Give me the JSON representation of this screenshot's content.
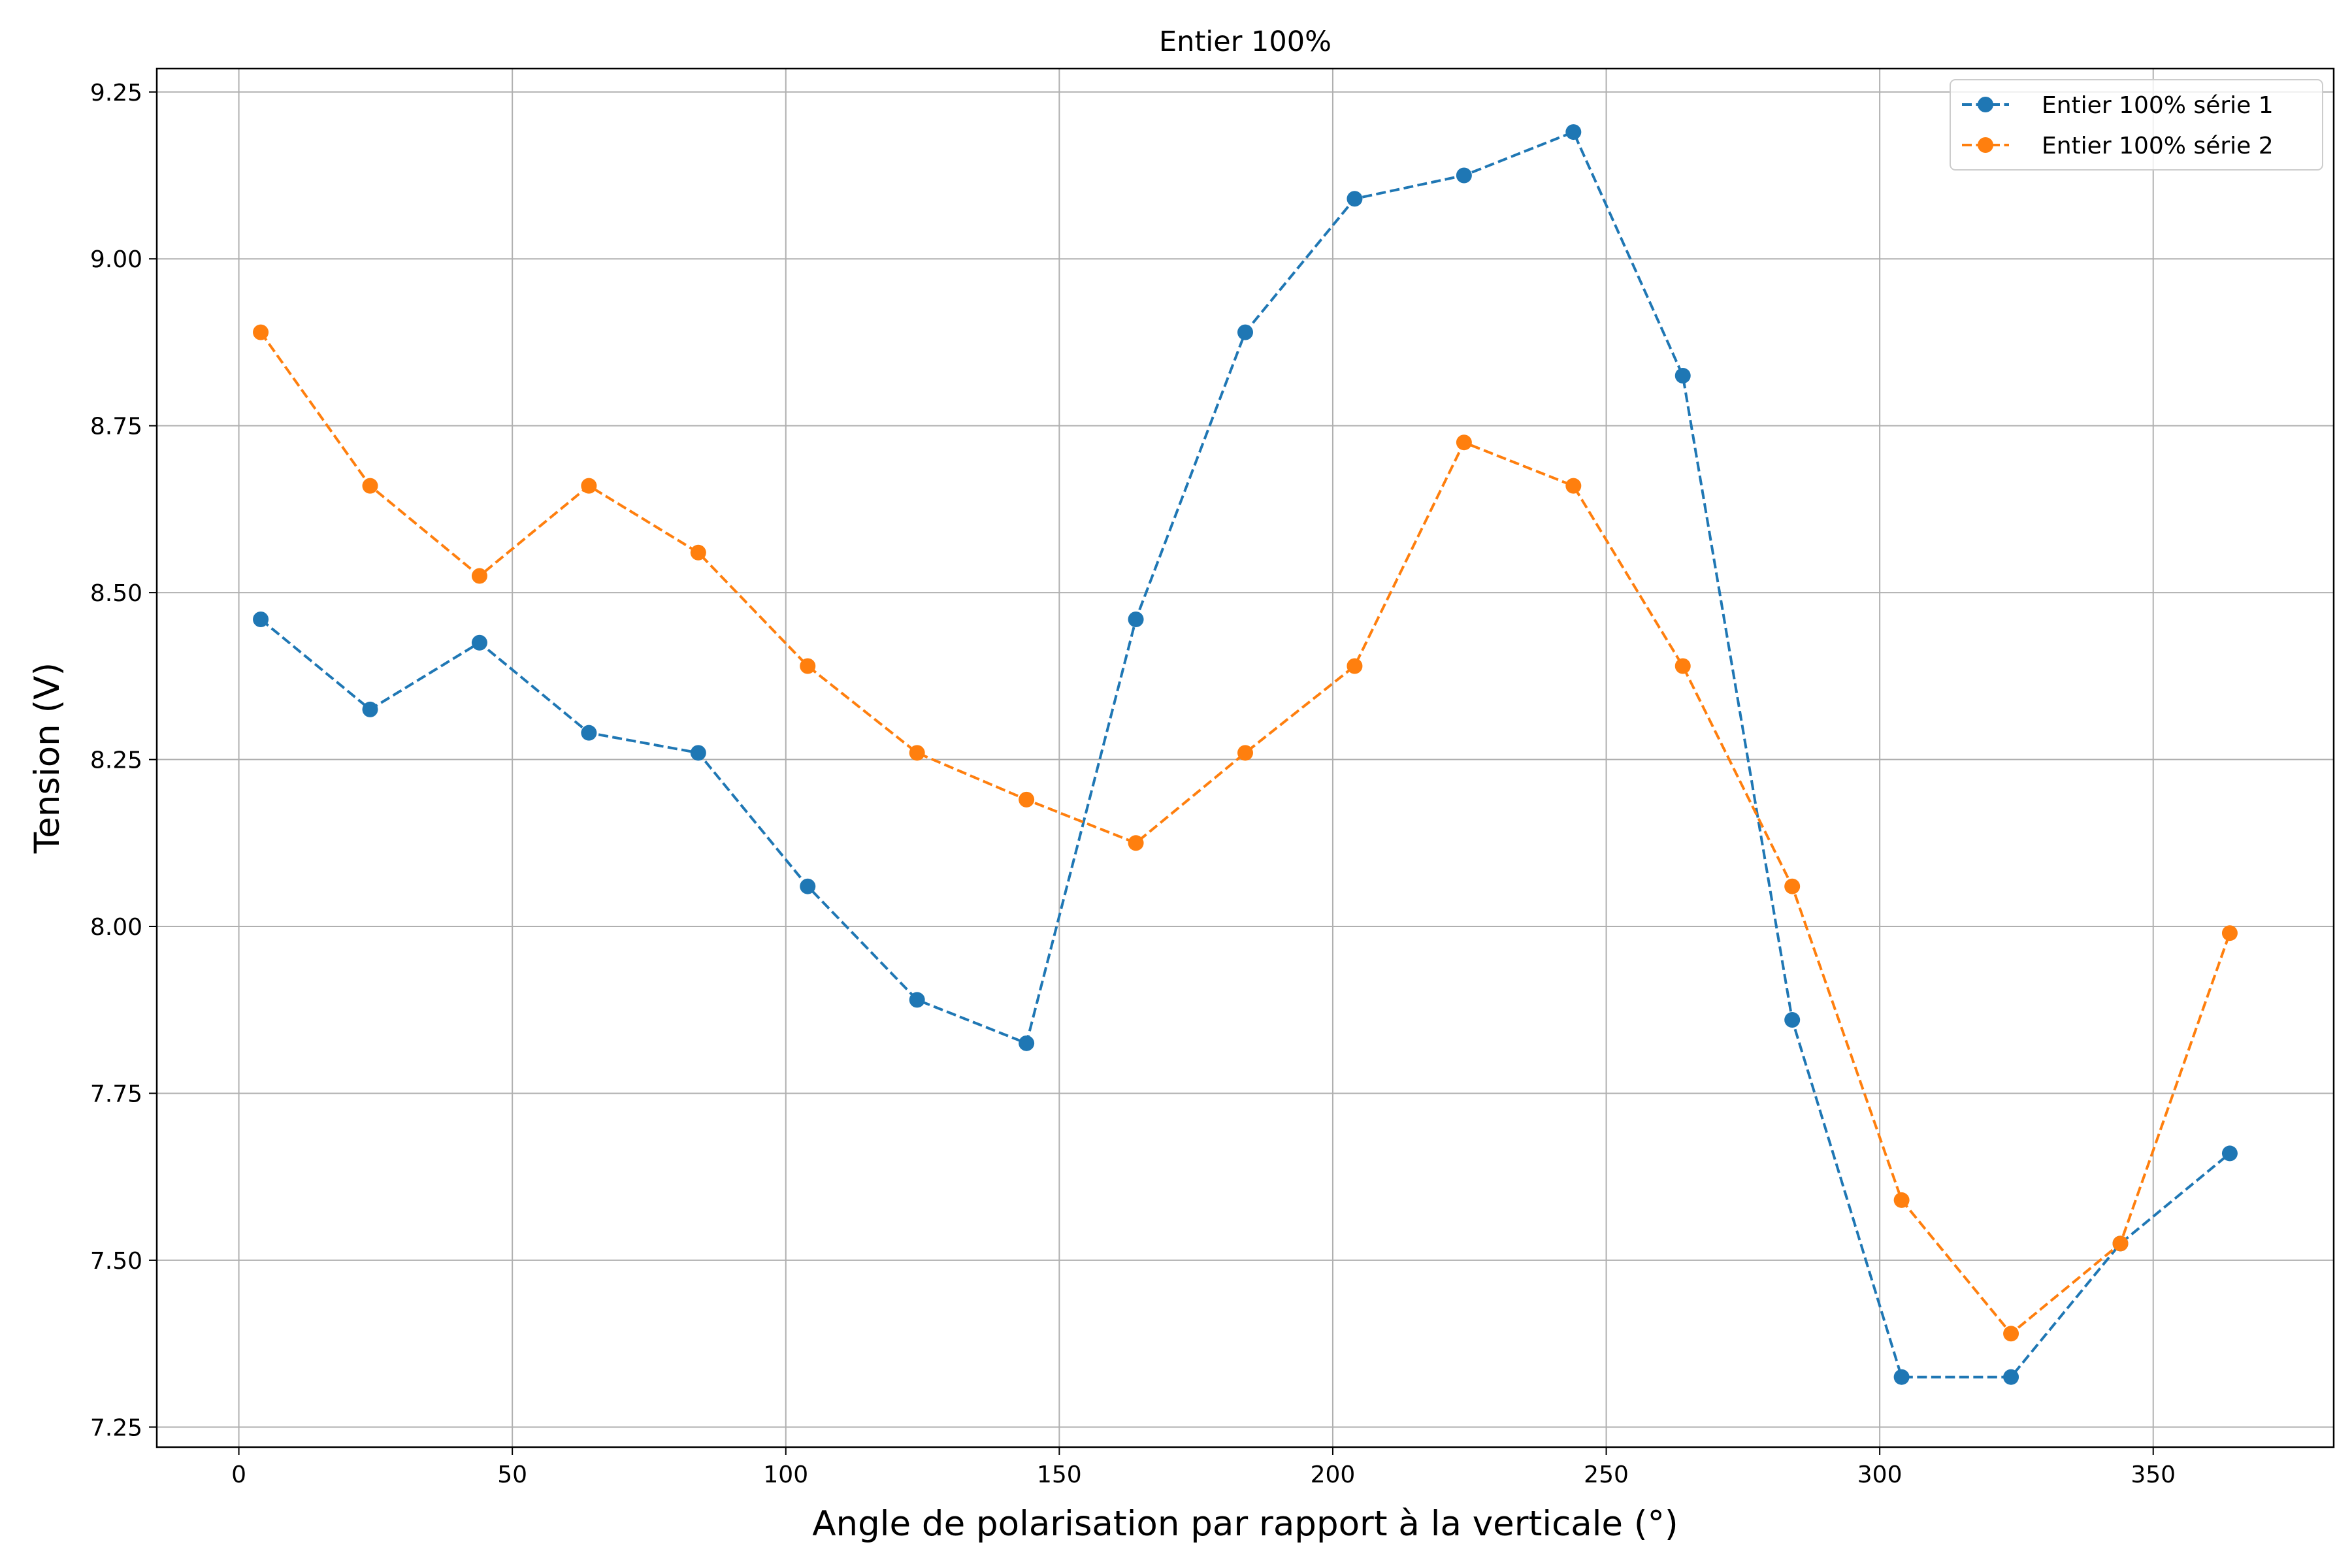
{
  "chart_data": {
    "type": "line",
    "title": "Entier 100%",
    "xlabel": "Angle de polarisation par rapport à la verticale (°)",
    "ylabel": "Tension (V)",
    "xlim": [
      -15,
      383
    ],
    "ylim": [
      7.22,
      9.285
    ],
    "xticks": [
      0,
      50,
      100,
      150,
      200,
      250,
      300,
      350
    ],
    "yticks": [
      7.25,
      7.5,
      7.75,
      8.0,
      8.25,
      8.5,
      8.75,
      9.0,
      9.25
    ],
    "grid": true,
    "legend_position": "top-right",
    "x": [
      4,
      24,
      44,
      64,
      84,
      104,
      124,
      144,
      164,
      184,
      204,
      224,
      244,
      264,
      284,
      304,
      324,
      344,
      364
    ],
    "series": [
      {
        "name": "Entier 100% série 1",
        "color": "#1f77b4",
        "line_style": "dashed",
        "marker": "circle",
        "values": [
          8.46,
          8.325,
          8.425,
          8.29,
          8.26,
          8.06,
          7.89,
          7.825,
          8.46,
          8.89,
          9.09,
          9.125,
          9.19,
          8.825,
          7.86,
          7.325,
          7.325,
          7.525,
          7.66
        ]
      },
      {
        "name": "Entier 100% série 2",
        "color": "#ff7f0e",
        "line_style": "dashed",
        "marker": "circle",
        "values": [
          8.89,
          8.66,
          8.525,
          8.66,
          8.56,
          8.39,
          8.26,
          8.19,
          8.125,
          8.26,
          8.39,
          8.725,
          8.66,
          8.39,
          8.06,
          7.59,
          7.39,
          7.525,
          7.99
        ]
      }
    ]
  }
}
